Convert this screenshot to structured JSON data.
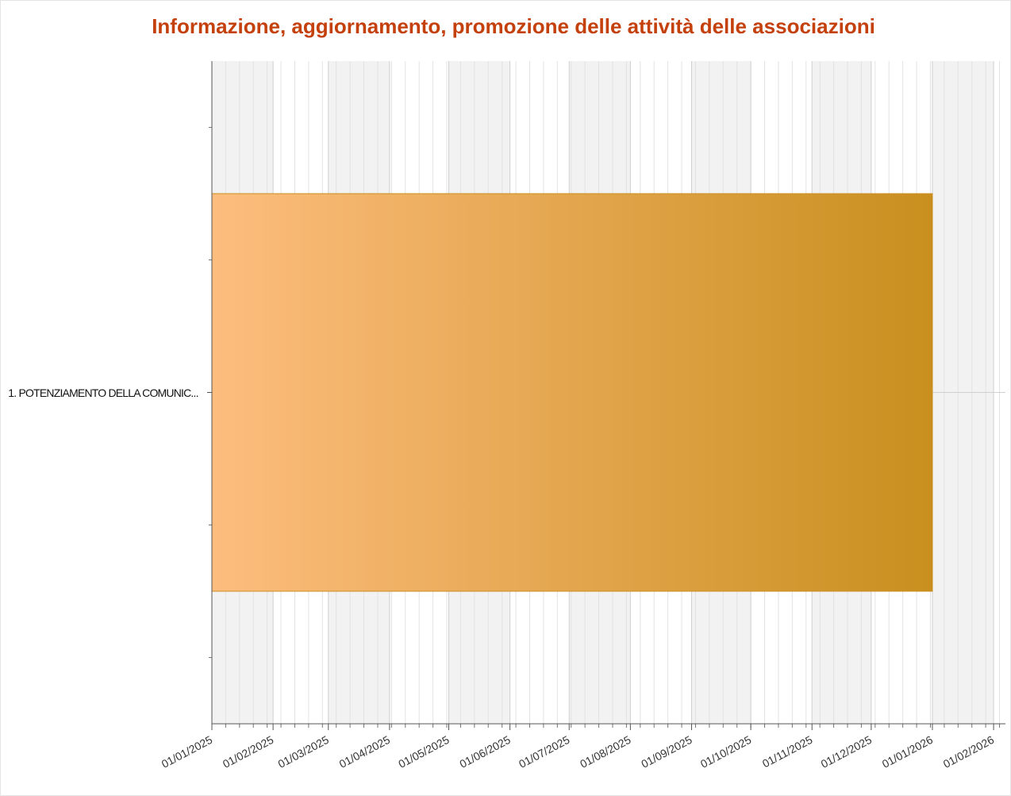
{
  "chart_data": {
    "type": "gantt",
    "title": "Informazione, aggiornamento, promozione delle attività delle associazioni",
    "categories": [
      "1. POTENZIAMENTO DELLA COMUNIC..."
    ],
    "start": [
      "01/01/2025"
    ],
    "end": [
      "01/01/2026"
    ],
    "color": [
      "#fdbd7e",
      "#c98f1e"
    ],
    "xlim": [
      "01/01/2025",
      "07/02/2026"
    ],
    "xticks": [
      "01/01/2025",
      "01/02/2025",
      "01/03/2025",
      "01/04/2025",
      "01/05/2025",
      "01/06/2025",
      "01/07/2025",
      "01/08/2025",
      "01/09/2025",
      "01/10/2025",
      "01/11/2025",
      "01/12/2025",
      "01/01/2026",
      "01/02/2026"
    ],
    "grid": true
  }
}
